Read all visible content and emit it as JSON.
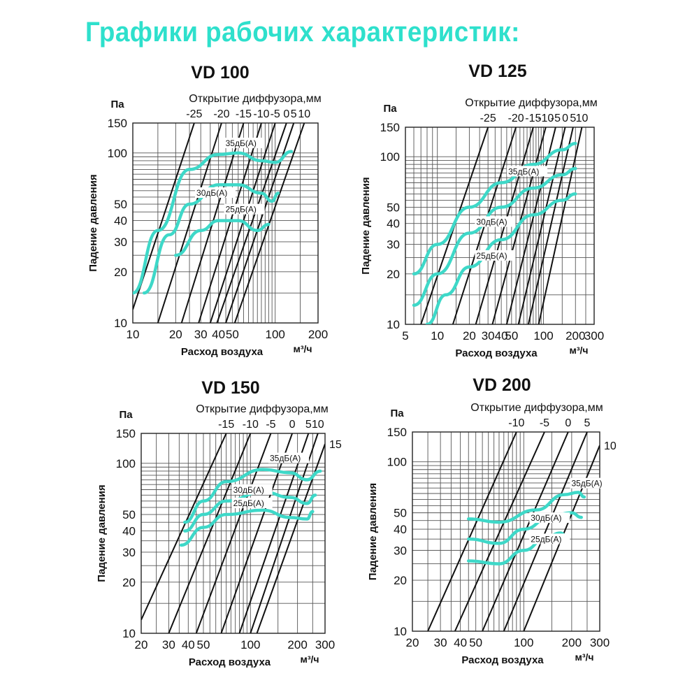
{
  "page_title": "Графики рабочих характеристик:",
  "colors": {
    "title": "#2ee0cc",
    "curve": "#3ed8c8",
    "line": "#111111",
    "grid": "#555555"
  },
  "chart_data": [
    {
      "type": "line",
      "title": "VD 100",
      "xlabel": "Расход воздуха",
      "xunit": "м³/ч",
      "ylabel": "Падение давления",
      "yunit": "Па",
      "toplabel": "Открытие диффузора,мм",
      "x_scale": "log",
      "y_scale": "log",
      "xlim": [
        10,
        200
      ],
      "ylim": [
        10,
        150
      ],
      "xticks": [
        10,
        20,
        30,
        40,
        50,
        100,
        200
      ],
      "yticks": [
        10,
        20,
        30,
        40,
        50,
        100,
        150
      ],
      "opening_lines": [
        {
          "label": "-25",
          "points": [
            [
              10,
              12
            ],
            [
              27,
              150
            ]
          ]
        },
        {
          "label": "-20",
          "points": [
            [
              15,
              10
            ],
            [
              42,
              150
            ]
          ]
        },
        {
          "label": "-15",
          "points": [
            [
              22,
              10
            ],
            [
              60,
              150
            ]
          ]
        },
        {
          "label": "-10",
          "points": [
            [
              29,
              10
            ],
            [
              80,
              150
            ]
          ]
        },
        {
          "label": "-5",
          "points": [
            [
              35,
              10
            ],
            [
              100,
              150
            ]
          ]
        },
        {
          "label": "0",
          "points": [
            [
              39,
              10
            ],
            [
              120,
              150
            ]
          ]
        },
        {
          "label": "5",
          "points": [
            [
              45,
              10
            ],
            [
              135,
              150
            ]
          ]
        },
        {
          "label": "10",
          "points": [
            [
              52,
              10
            ],
            [
              160,
              150
            ]
          ]
        }
      ],
      "noise_curves": [
        {
          "label": "35дБ(А)",
          "points": [
            [
              10,
              15
            ],
            [
              15,
              35
            ],
            [
              25,
              80
            ],
            [
              40,
              98
            ],
            [
              55,
              100
            ],
            [
              80,
              90
            ],
            [
              100,
              88
            ],
            [
              130,
              102
            ]
          ]
        },
        {
          "label": "30дБ(А)",
          "points": [
            [
              12,
              15
            ],
            [
              18,
              33
            ],
            [
              25,
              50
            ],
            [
              40,
              65
            ],
            [
              55,
              65
            ],
            [
              80,
              58
            ],
            [
              95,
              52
            ],
            [
              105,
              58
            ]
          ]
        },
        {
          "label": "25дБ(А)",
          "points": [
            [
              20,
              25
            ],
            [
              30,
              35
            ],
            [
              40,
              40
            ],
            [
              55,
              40
            ],
            [
              75,
              35
            ],
            [
              90,
              38
            ]
          ]
        }
      ]
    },
    {
      "type": "line",
      "title": "VD 125",
      "xlabel": "Расход воздуха",
      "xunit": "м³/ч",
      "ylabel": "Падение давления",
      "yunit": "Па",
      "toplabel": "Открытие диффузора,мм",
      "x_scale": "log",
      "y_scale": "log",
      "xlim": [
        5,
        300
      ],
      "ylim": [
        10,
        150
      ],
      "xticks": [
        5,
        10,
        20,
        30,
        40,
        50,
        100,
        200,
        300
      ],
      "yticks": [
        10,
        20,
        30,
        40,
        50,
        100,
        150
      ],
      "opening_lines": [
        {
          "label": "-25",
          "points": [
            [
              7,
              10
            ],
            [
              30,
              150
            ]
          ]
        },
        {
          "label": "-20",
          "points": [
            [
              14,
              10
            ],
            [
              55,
              150
            ]
          ]
        },
        {
          "label": "-15",
          "points": [
            [
              23,
              10
            ],
            [
              80,
              150
            ]
          ]
        },
        {
          "label": "-10",
          "points": [
            [
              33,
              10
            ],
            [
              105,
              150
            ]
          ]
        },
        {
          "label": "-5",
          "points": [
            [
              45,
              10
            ],
            [
              130,
              150
            ]
          ]
        },
        {
          "label": "0",
          "points": [
            [
              58,
              10
            ],
            [
              160,
              150
            ]
          ]
        },
        {
          "label": "5",
          "points": [
            [
              72,
              10
            ],
            [
              190,
              150
            ]
          ]
        },
        {
          "label": "10",
          "points": [
            [
              90,
              10
            ],
            [
              230,
              150
            ]
          ]
        }
      ],
      "noise_curves": [
        {
          "label": "35дБ(А)",
          "points": [
            [
              6,
              20
            ],
            [
              10,
              30
            ],
            [
              20,
              50
            ],
            [
              40,
              70
            ],
            [
              80,
              90
            ],
            [
              150,
              110
            ],
            [
              200,
              120
            ]
          ]
        },
        {
          "label": "30дБ(А)",
          "points": [
            [
              6,
              13
            ],
            [
              10,
              20
            ],
            [
              20,
              35
            ],
            [
              40,
              50
            ],
            [
              80,
              65
            ],
            [
              150,
              78
            ],
            [
              200,
              85
            ]
          ]
        },
        {
          "label": "25дБ(А)",
          "points": [
            [
              8,
              10
            ],
            [
              12,
              15
            ],
            [
              20,
              22
            ],
            [
              40,
              32
            ],
            [
              80,
              45
            ],
            [
              150,
              55
            ],
            [
              200,
              60
            ]
          ]
        }
      ]
    },
    {
      "type": "line",
      "title": "VD 150",
      "xlabel": "Расход воздуха",
      "xunit": "м³/ч",
      "ylabel": "Падение давления",
      "yunit": "Па",
      "toplabel": "Открытие диффузора,мм",
      "x_scale": "log",
      "y_scale": "log",
      "xlim": [
        20,
        300
      ],
      "ylim": [
        10,
        150
      ],
      "xticks": [
        20,
        30,
        40,
        50,
        100,
        200,
        300
      ],
      "yticks": [
        10,
        20,
        30,
        40,
        50,
        100,
        150
      ],
      "opening_lines": [
        {
          "label": "-15",
          "points": [
            [
              20,
              12
            ],
            [
              70,
              150
            ]
          ]
        },
        {
          "label": "-10",
          "points": [
            [
              30,
              10
            ],
            [
              100,
              150
            ]
          ]
        },
        {
          "label": "-5",
          "points": [
            [
              45,
              10
            ],
            [
              135,
              150
            ]
          ]
        },
        {
          "label": "0",
          "points": [
            [
              65,
              10
            ],
            [
              185,
              150
            ]
          ]
        },
        {
          "label": "5",
          "points": [
            [
              85,
              10
            ],
            [
              235,
              150
            ]
          ]
        },
        {
          "label": "10",
          "points": [
            [
              100,
              10
            ],
            [
              270,
              150
            ]
          ]
        },
        {
          "label": "15",
          "points": [
            [
              110,
              10
            ],
            [
              300,
              130
            ]
          ]
        }
      ],
      "noise_curves": [
        {
          "label": "35дБ(А)",
          "points": [
            [
              38,
              45
            ],
            [
              50,
              60
            ],
            [
              70,
              78
            ],
            [
              120,
              92
            ],
            [
              180,
              88
            ],
            [
              230,
              80
            ],
            [
              280,
              90
            ]
          ]
        },
        {
          "label": "30дБ(А)",
          "points": [
            [
              38,
              40
            ],
            [
              50,
              50
            ],
            [
              70,
              60
            ],
            [
              120,
              68
            ],
            [
              180,
              63
            ],
            [
              230,
              58
            ],
            [
              260,
              65
            ]
          ]
        },
        {
          "label": "25дБ(А)",
          "points": [
            [
              36,
              33
            ],
            [
              50,
              42
            ],
            [
              70,
              50
            ],
            [
              120,
              53
            ],
            [
              180,
              48
            ],
            [
              230,
              47
            ],
            [
              250,
              52
            ]
          ]
        }
      ]
    },
    {
      "type": "line",
      "title": "VD 200",
      "xlabel": "Расход воздуха",
      "xunit": "м³/ч",
      "ylabel": "Падение давления",
      "yunit": "Па",
      "toplabel": "Открытие диффузора,мм",
      "x_scale": "log",
      "y_scale": "log",
      "xlim": [
        20,
        300
      ],
      "ylim": [
        10,
        150
      ],
      "xticks": [
        20,
        30,
        40,
        50,
        100,
        200,
        300
      ],
      "yticks": [
        10,
        20,
        30,
        40,
        50,
        100,
        150
      ],
      "opening_lines": [
        {
          "label": "-10",
          "points": [
            [
              25,
              10
            ],
            [
              90,
              150
            ]
          ]
        },
        {
          "label": "-5",
          "points": [
            [
              37,
              10
            ],
            [
              135,
              150
            ]
          ]
        },
        {
          "label": "0",
          "points": [
            [
              55,
              10
            ],
            [
              190,
              150
            ]
          ]
        },
        {
          "label": "5",
          "points": [
            [
              75,
              10
            ],
            [
              250,
              150
            ]
          ]
        },
        {
          "label": "10",
          "points": [
            [
              100,
              10
            ],
            [
              300,
              125
            ]
          ]
        }
      ],
      "noise_curves": [
        {
          "label": "35дБ(А)",
          "points": [
            [
              45,
              46
            ],
            [
              70,
              44
            ],
            [
              120,
              52
            ],
            [
              180,
              64
            ],
            [
              220,
              66
            ],
            [
              240,
              62
            ]
          ]
        },
        {
          "label": "30дБ(А)",
          "points": [
            [
              45,
              35
            ],
            [
              70,
              33
            ],
            [
              100,
              40
            ],
            [
              150,
              48
            ],
            [
              200,
              50
            ],
            [
              230,
              47
            ]
          ]
        },
        {
          "label": "25дБ(А)",
          "points": [
            [
              45,
              26
            ],
            [
              70,
              25
            ],
            [
              100,
              30
            ],
            [
              140,
              36
            ],
            [
              170,
              38
            ],
            [
              190,
              35
            ]
          ]
        }
      ]
    }
  ]
}
